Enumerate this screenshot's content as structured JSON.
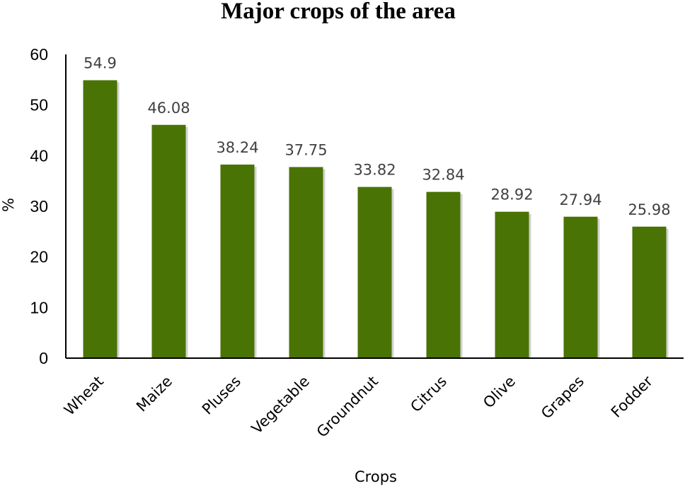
{
  "chart_data": {
    "type": "bar",
    "title": "Major crops of the area",
    "xlabel": "Crops",
    "ylabel": "%",
    "categories": [
      "Wheat",
      "Maize",
      "Pluses",
      "Vegetable",
      "Groundnut",
      "Citrus",
      "Olive",
      "Grapes",
      "Fodder"
    ],
    "values": [
      54.9,
      46.08,
      38.24,
      37.75,
      33.82,
      32.84,
      28.92,
      27.94,
      25.98
    ],
    "data_labels": [
      "54.9",
      "46.08",
      "38.24",
      "37.75",
      "33.82",
      "32.84",
      "28.92",
      "27.94",
      "25.98"
    ],
    "ylim": [
      0,
      60
    ],
    "yticks": [
      0,
      10,
      20,
      30,
      40,
      50,
      60
    ],
    "grid": false,
    "legend": "none",
    "bar_color": "#4a7305"
  }
}
